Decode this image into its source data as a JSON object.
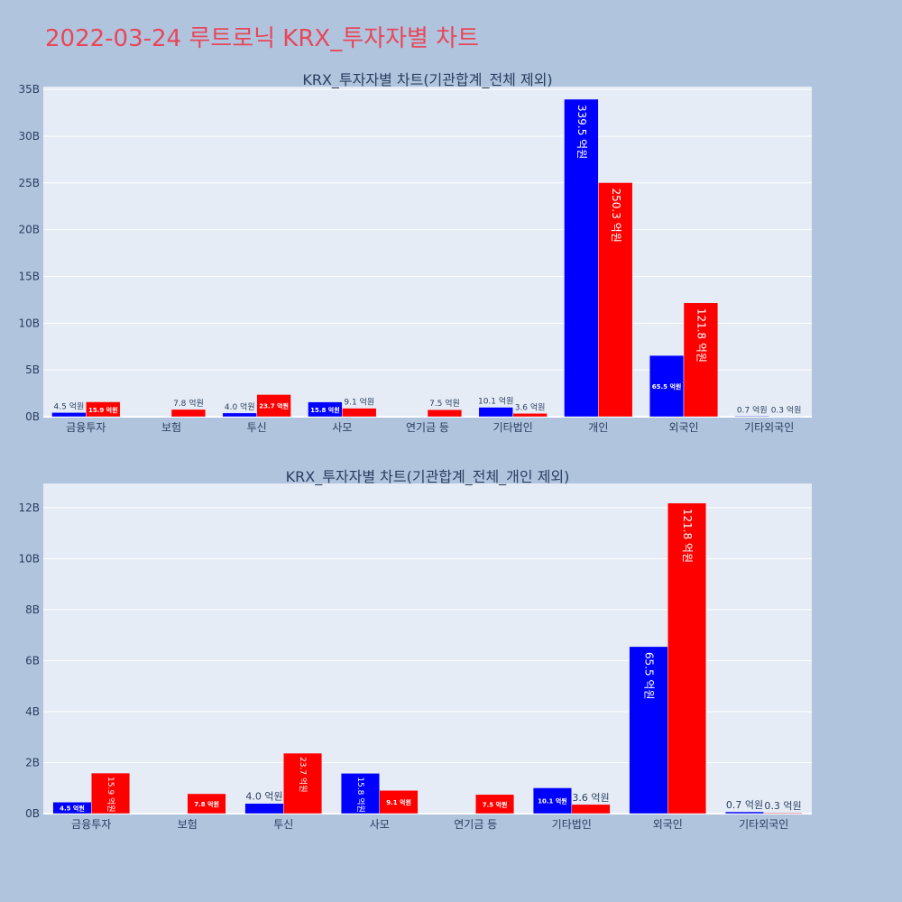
{
  "page": {
    "title": "2022-03-24 루트로닉 KRX_투자자별 차트"
  },
  "colors": {
    "buy": "#0000ff",
    "sell": "#ff0000",
    "plot_bg": "#e5ecf6",
    "page_bg": "#b0c4de",
    "title": "#e8475a",
    "text": "#2a3f5f"
  },
  "chart_data": [
    {
      "type": "bar",
      "title": "KRX_투자자별 차트(기관합계_전체 제외)",
      "categories": [
        "금융투자",
        "보험",
        "투신",
        "사모",
        "연기금 등",
        "기타법인",
        "개인",
        "외국인",
        "기타외국인"
      ],
      "series": [
        {
          "values": [
            0.45,
            0,
            0.4,
            1.58,
            0,
            1.01,
            33.95,
            6.55,
            0.07
          ],
          "labels": [
            "4.5 억원",
            "",
            "4.0 억원",
            "15.8 억원",
            "",
            "10.1 억원",
            "339.5 억원",
            "65.5 억원",
            "0.7 억원"
          ]
        },
        {
          "values": [
            1.59,
            0.78,
            2.37,
            0.91,
            0.75,
            0.36,
            25.03,
            12.18,
            0.03
          ],
          "labels": [
            "15.9 억원",
            "7.8 억원",
            "23.7 억원",
            "9.1 억원",
            "7.5 억원",
            "3.6 억원",
            "250.3 억원",
            "121.8 억원",
            "0.3 억원"
          ]
        }
      ],
      "yunit": "B",
      "yticks": [
        0,
        5,
        10,
        15,
        20,
        25,
        30,
        35
      ],
      "ylim": [
        0,
        35.3
      ],
      "grid": true
    },
    {
      "type": "bar",
      "title": "KRX_투자자별 차트(기관합계_전체_개인 제외)",
      "categories": [
        "금융투자",
        "보험",
        "투신",
        "사모",
        "연기금 등",
        "기타법인",
        "외국인",
        "기타외국인"
      ],
      "series": [
        {
          "values": [
            0.45,
            0,
            0.4,
            1.58,
            0,
            1.01,
            6.55,
            0.07
          ],
          "labels": [
            "4.5 억원",
            "",
            "4.0 억원",
            "15.8 억원",
            "",
            "10.1 억원",
            "65.5 억원",
            "0.7 억원"
          ]
        },
        {
          "values": [
            1.59,
            0.78,
            2.37,
            0.91,
            0.75,
            0.36,
            12.18,
            0.03
          ],
          "labels": [
            "15.9 억원",
            "7.8 억원",
            "23.7 억원",
            "9.1 억원",
            "7.5 억원",
            "3.6 억원",
            "121.8 억원",
            "0.3 억원"
          ]
        }
      ],
      "yunit": "B",
      "yticks": [
        0,
        2,
        4,
        6,
        8,
        10,
        12
      ],
      "ylim": [
        0,
        12.95
      ],
      "grid": true
    }
  ]
}
